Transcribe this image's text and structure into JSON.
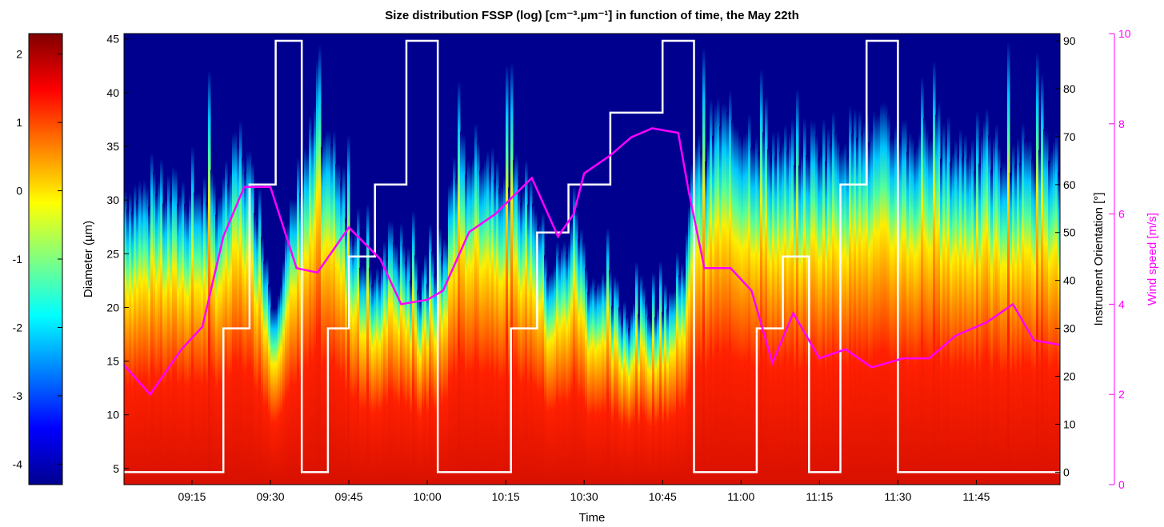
{
  "chart_data": {
    "type": "heatmap",
    "title": "Size distribution FSSP (log) [cm⁻³.µm⁻¹] in function of time, the May 22th",
    "xlabel": "Time",
    "ylabel": "Diameter (µm)",
    "x_range": [
      "09:02",
      "12:01"
    ],
    "x_ticks": [
      "09:15",
      "09:30",
      "09:45",
      "10:00",
      "10:15",
      "10:30",
      "10:45",
      "11:00",
      "11:15",
      "11:30",
      "11:45"
    ],
    "y_range": [
      3.5,
      45.5
    ],
    "y_ticks": [
      5,
      10,
      15,
      20,
      25,
      30,
      35,
      40,
      45
    ],
    "colorbar": {
      "range": [
        -4.3,
        2.3
      ],
      "ticks": [
        2,
        1,
        0,
        -1,
        -2,
        -3,
        -4
      ],
      "colormap": "jet"
    },
    "right_axis_1": {
      "label": "Instrument Orientation [°]",
      "range": [
        -2.6,
        91.5
      ],
      "ticks": [
        0,
        10,
        20,
        30,
        40,
        50,
        60,
        70,
        80,
        90
      ],
      "color": "#000000"
    },
    "right_axis_2": {
      "label": "Wind speed [m/s]",
      "range": [
        0,
        10
      ],
      "ticks": [
        0,
        2,
        4,
        6,
        8,
        10
      ],
      "color": "#ff00ff"
    },
    "series": [
      {
        "name": "Instrument Orientation",
        "axis": "right_axis_1",
        "color": "#ffffff",
        "points": [
          [
            "09:02",
            0
          ],
          [
            "09:21",
            0
          ],
          [
            "09:21",
            30
          ],
          [
            "09:26",
            30
          ],
          [
            "09:26",
            60
          ],
          [
            "09:31",
            60
          ],
          [
            "09:31",
            90
          ],
          [
            "09:36",
            90
          ],
          [
            "09:36",
            0
          ],
          [
            "09:41",
            0
          ],
          [
            "09:41",
            30
          ],
          [
            "09:45",
            30
          ],
          [
            "09:45",
            45
          ],
          [
            "09:50",
            45
          ],
          [
            "09:50",
            60
          ],
          [
            "09:56",
            60
          ],
          [
            "09:56",
            90
          ],
          [
            "10:02",
            90
          ],
          [
            "10:02",
            0
          ],
          [
            "10:16",
            0
          ],
          [
            "10:16",
            30
          ],
          [
            "10:21",
            30
          ],
          [
            "10:21",
            50
          ],
          [
            "10:27",
            50
          ],
          [
            "10:27",
            60
          ],
          [
            "10:35",
            60
          ],
          [
            "10:35",
            75
          ],
          [
            "10:45",
            75
          ],
          [
            "10:45",
            90
          ],
          [
            "10:51",
            90
          ],
          [
            "10:51",
            0
          ],
          [
            "11:03",
            0
          ],
          [
            "11:03",
            30
          ],
          [
            "11:08",
            30
          ],
          [
            "11:08",
            45
          ],
          [
            "11:13",
            45
          ],
          [
            "11:13",
            0
          ],
          [
            "11:19",
            0
          ],
          [
            "11:19",
            60
          ],
          [
            "11:24",
            60
          ],
          [
            "11:24",
            90
          ],
          [
            "11:30",
            90
          ],
          [
            "11:30",
            0
          ],
          [
            "12:01",
            0
          ]
        ]
      },
      {
        "name": "Wind speed",
        "axis": "right_axis_2",
        "color": "#ff00ff",
        "points": [
          [
            "09:02",
            2.65
          ],
          [
            "09:07",
            2.0
          ],
          [
            "09:13",
            3.0
          ],
          [
            "09:17",
            3.5
          ],
          [
            "09:21",
            5.5
          ],
          [
            "09:25",
            6.6
          ],
          [
            "09:30",
            6.6
          ],
          [
            "09:35",
            4.8
          ],
          [
            "09:39",
            4.7
          ],
          [
            "09:45",
            5.7
          ],
          [
            "09:51",
            5.0
          ],
          [
            "09:55",
            4.0
          ],
          [
            "10:00",
            4.1
          ],
          [
            "10:03",
            4.3
          ],
          [
            "10:08",
            5.6
          ],
          [
            "10:13",
            6.0
          ],
          [
            "10:20",
            6.8
          ],
          [
            "10:25",
            5.5
          ],
          [
            "10:28",
            6.0
          ],
          [
            "10:30",
            6.9
          ],
          [
            "10:35",
            7.3
          ],
          [
            "10:39",
            7.7
          ],
          [
            "10:43",
            7.9
          ],
          [
            "10:48",
            7.8
          ],
          [
            "10:50",
            6.5
          ],
          [
            "10:53",
            4.8
          ],
          [
            "10:58",
            4.8
          ],
          [
            "11:02",
            4.3
          ],
          [
            "11:06",
            2.7
          ],
          [
            "11:10",
            3.8
          ],
          [
            "11:15",
            2.8
          ],
          [
            "11:20",
            3.0
          ],
          [
            "11:25",
            2.6
          ],
          [
            "11:31",
            2.8
          ],
          [
            "11:36",
            2.8
          ],
          [
            "11:41",
            3.3
          ],
          [
            "11:47",
            3.6
          ],
          [
            "11:52",
            4.0
          ],
          [
            "11:56",
            3.2
          ],
          [
            "12:01",
            3.1
          ]
        ]
      }
    ],
    "intensity_profile": [
      [
        "09:02",
        21
      ],
      [
        "09:21",
        21
      ],
      [
        "09:24",
        26
      ],
      [
        "09:28",
        19
      ],
      [
        "09:30",
        11
      ],
      [
        "09:33",
        16
      ],
      [
        "09:35",
        22
      ],
      [
        "09:38",
        27
      ],
      [
        "09:41",
        24
      ],
      [
        "09:44",
        21
      ],
      [
        "09:46",
        17
      ],
      [
        "09:50",
        13
      ],
      [
        "09:52",
        17
      ],
      [
        "09:55",
        16
      ],
      [
        "09:58",
        12
      ],
      [
        "10:00",
        13
      ],
      [
        "10:03",
        16
      ],
      [
        "10:05",
        24
      ],
      [
        "10:10",
        25
      ],
      [
        "10:15",
        23
      ],
      [
        "10:20",
        21
      ],
      [
        "10:23",
        14
      ],
      [
        "10:26",
        15
      ],
      [
        "10:28",
        20
      ],
      [
        "10:30",
        14
      ],
      [
        "10:33",
        12
      ],
      [
        "10:38",
        10
      ],
      [
        "10:45",
        12
      ],
      [
        "10:48",
        11
      ],
      [
        "10:51",
        24
      ],
      [
        "10:55",
        28
      ],
      [
        "11:02",
        27
      ],
      [
        "11:08",
        25
      ],
      [
        "11:15",
        26
      ],
      [
        "11:25",
        27
      ],
      [
        "11:35",
        26
      ],
      [
        "11:45",
        25
      ],
      [
        "12:01",
        25
      ]
    ]
  }
}
